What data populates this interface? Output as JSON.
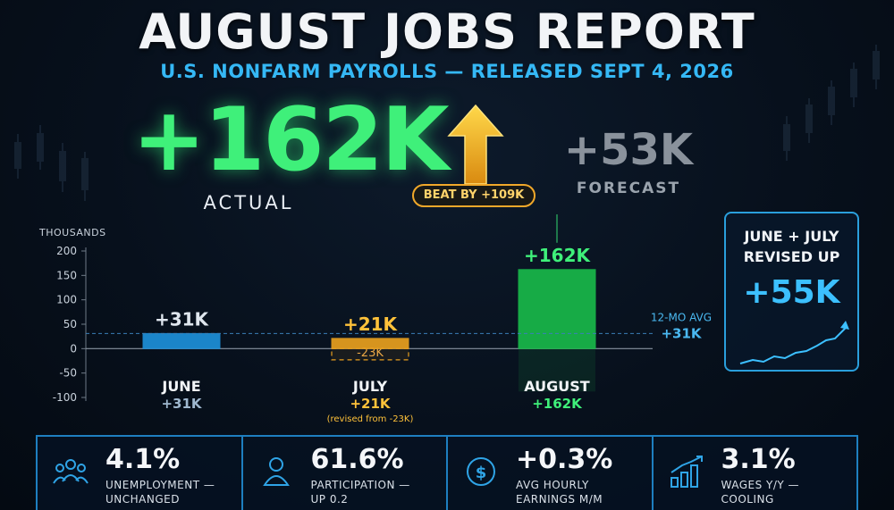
{
  "header": {
    "title": "AUGUST JOBS REPORT",
    "subtitle": "U.S. NONFARM PAYROLLS — RELEASED SEPT 4, 2026"
  },
  "headline": {
    "actual_value": "+162K",
    "actual_label": "ACTUAL",
    "beat_label": "BEAT BY +109K",
    "forecast_value": "+53K",
    "forecast_label": "FORECAST"
  },
  "chart_data": {
    "type": "bar",
    "ylabel": "THOUSANDS",
    "ylim": [
      -100,
      200
    ],
    "yticks": [
      200,
      150,
      100,
      50,
      0,
      -50,
      -100
    ],
    "grid": false,
    "categories": [
      "JUNE",
      "JULY",
      "AUGUST"
    ],
    "values": [
      31,
      21,
      162
    ],
    "bar_labels": [
      "+31K",
      "+21K",
      "+162K"
    ],
    "category_sublabels": [
      "+31K",
      "+21K",
      "+162K"
    ],
    "prior_estimates": [
      null,
      -23,
      null
    ],
    "prior_labels": [
      "",
      "-23K",
      ""
    ],
    "notes": [
      "",
      "(revised from -23K)",
      ""
    ],
    "bar_colors": [
      "#1d8fd8",
      "#e89f1e",
      "#19b84a"
    ],
    "reference_line": {
      "label": "12-MO AVG",
      "value_label": "+31K",
      "value": 31
    }
  },
  "revised_panel": {
    "heading_line1": "JUNE + JULY",
    "heading_line2": "REVISED UP",
    "value": "+55K"
  },
  "stats": [
    {
      "icon": "people-group-icon",
      "value": "4.1%",
      "label_line1": "UNEMPLOYMENT —",
      "label_line2": "UNCHANGED"
    },
    {
      "icon": "person-icon",
      "value": "61.6%",
      "label_line1": "PARTICIPATION —",
      "label_line2": "UP 0.2"
    },
    {
      "icon": "dollar-coin-icon",
      "value": "+0.3%",
      "label_line1": "AVG HOURLY",
      "label_line2": "EARNINGS M/M"
    },
    {
      "icon": "growth-bars-icon",
      "value": "3.1%",
      "label_line1": "WAGES Y/Y —",
      "label_line2": "COOLING"
    }
  ],
  "colors": {
    "accent_blue": "#35b8f5",
    "accent_green": "#3ff07a",
    "accent_amber": "#f1a82a",
    "muted_gray": "#8a929c"
  }
}
